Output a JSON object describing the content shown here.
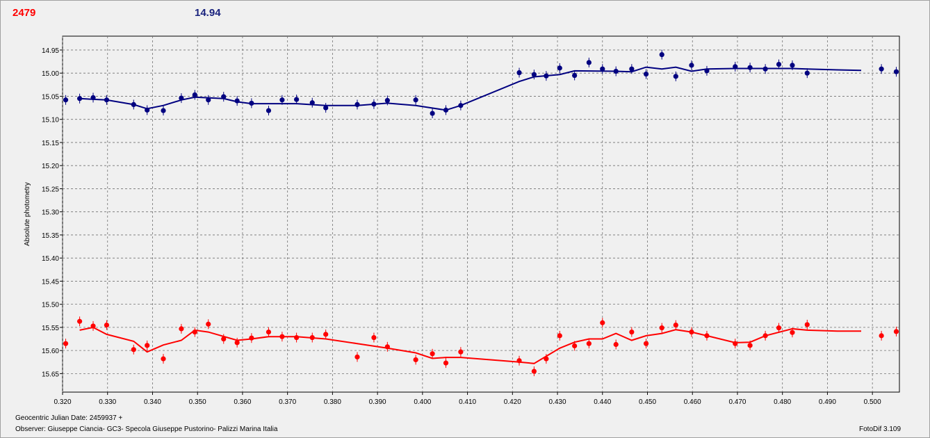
{
  "header": {
    "left_value": "2479",
    "right_value": "14.94"
  },
  "footer": {
    "julian_date": "Geocentric Julian Date: 2459937 +",
    "observer": "Observer: Giuseppe Ciancia- GC3- Specola Giuseppe Pustorino- Palizzi Marina Italia",
    "software": "FotoDif 3.109"
  },
  "colors": {
    "series_blue": "#000080",
    "series_red": "#ff0000",
    "plot_bg": "#f0f0f0",
    "grid": "#707070"
  },
  "chart_data": {
    "type": "scatter",
    "ylabel": "Absolute photometry",
    "xlabel": "",
    "xlim": [
      0.32,
      0.506
    ],
    "ylim": [
      14.92,
      15.69
    ],
    "y_inverted": true,
    "grid": true,
    "xticks": [
      "0.320",
      "0.330",
      "0.340",
      "0.350",
      "0.360",
      "0.370",
      "0.380",
      "0.390",
      "0.400",
      "0.410",
      "0.420",
      "0.430",
      "0.440",
      "0.450",
      "0.460",
      "0.470",
      "0.480",
      "0.490",
      "0.500"
    ],
    "yticks": [
      "14.95",
      "15.00",
      "15.05",
      "15.10",
      "15.15",
      "15.20",
      "15.25",
      "15.30",
      "15.35",
      "15.40",
      "15.45",
      "15.50",
      "15.55",
      "15.60",
      "15.65"
    ],
    "series": [
      {
        "color": "#000080",
        "points": [
          [
            0.3207,
            15.058
          ],
          [
            0.3238,
            15.055
          ],
          [
            0.3268,
            15.053
          ],
          [
            0.3298,
            15.058
          ],
          [
            0.3358,
            15.068
          ],
          [
            0.3388,
            15.08
          ],
          [
            0.3424,
            15.081
          ],
          [
            0.3464,
            15.054
          ],
          [
            0.3494,
            15.047
          ],
          [
            0.3524,
            15.058
          ],
          [
            0.3558,
            15.051
          ],
          [
            0.3588,
            15.06
          ],
          [
            0.362,
            15.065
          ],
          [
            0.3658,
            15.081
          ],
          [
            0.3688,
            15.058
          ],
          [
            0.372,
            15.057
          ],
          [
            0.3755,
            15.064
          ],
          [
            0.3785,
            15.075
          ],
          [
            0.3855,
            15.068
          ],
          [
            0.3892,
            15.067
          ],
          [
            0.3922,
            15.059
          ],
          [
            0.3985,
            15.058
          ],
          [
            0.4022,
            15.087
          ],
          [
            0.4052,
            15.08
          ],
          [
            0.4085,
            15.07
          ],
          [
            0.4215,
            14.999
          ],
          [
            0.4248,
            15.003
          ],
          [
            0.4275,
            15.006
          ],
          [
            0.4305,
            14.989
          ],
          [
            0.4338,
            15.005
          ],
          [
            0.437,
            14.977
          ],
          [
            0.44,
            14.991
          ],
          [
            0.443,
            14.996
          ],
          [
            0.4465,
            14.991
          ],
          [
            0.4497,
            15.002
          ],
          [
            0.4532,
            14.96
          ],
          [
            0.4563,
            15.007
          ],
          [
            0.4598,
            14.983
          ],
          [
            0.4632,
            14.995
          ],
          [
            0.4695,
            14.986
          ],
          [
            0.4728,
            14.988
          ],
          [
            0.4762,
            14.991
          ],
          [
            0.4792,
            14.981
          ],
          [
            0.4822,
            14.983
          ],
          [
            0.4855,
            15.0
          ],
          [
            0.502,
            14.991
          ],
          [
            0.5053,
            14.997
          ]
        ],
        "fit": [
          [
            0.3238,
            15.055
          ],
          [
            0.3298,
            15.058
          ],
          [
            0.3358,
            15.068
          ],
          [
            0.3388,
            15.077
          ],
          [
            0.3424,
            15.07
          ],
          [
            0.3464,
            15.058
          ],
          [
            0.3494,
            15.052
          ],
          [
            0.3558,
            15.055
          ],
          [
            0.3588,
            15.062
          ],
          [
            0.362,
            15.066
          ],
          [
            0.372,
            15.066
          ],
          [
            0.3785,
            15.07
          ],
          [
            0.3855,
            15.07
          ],
          [
            0.3922,
            15.065
          ],
          [
            0.3985,
            15.07
          ],
          [
            0.4052,
            15.08
          ],
          [
            0.4085,
            15.07
          ],
          [
            0.4215,
            15.018
          ],
          [
            0.4248,
            15.008
          ],
          [
            0.4305,
            15.003
          ],
          [
            0.4338,
            14.995
          ],
          [
            0.443,
            14.996
          ],
          [
            0.4465,
            14.997
          ],
          [
            0.4497,
            14.987
          ],
          [
            0.4532,
            14.991
          ],
          [
            0.4563,
            14.987
          ],
          [
            0.4598,
            14.996
          ],
          [
            0.4632,
            14.991
          ],
          [
            0.4695,
            14.99
          ],
          [
            0.4822,
            14.99
          ],
          [
            0.4855,
            14.991
          ],
          [
            0.4922,
            14.993
          ],
          [
            0.4975,
            14.994
          ]
        ]
      },
      {
        "color": "#ff0000",
        "points": [
          [
            0.3207,
            15.585
          ],
          [
            0.3238,
            15.537
          ],
          [
            0.3268,
            15.547
          ],
          [
            0.3298,
            15.545
          ],
          [
            0.3358,
            15.598
          ],
          [
            0.3388,
            15.589
          ],
          [
            0.3424,
            15.618
          ],
          [
            0.3464,
            15.553
          ],
          [
            0.3494,
            15.56
          ],
          [
            0.3524,
            15.543
          ],
          [
            0.3558,
            15.575
          ],
          [
            0.3588,
            15.583
          ],
          [
            0.362,
            15.573
          ],
          [
            0.3658,
            15.56
          ],
          [
            0.3688,
            15.57
          ],
          [
            0.372,
            15.572
          ],
          [
            0.3755,
            15.572
          ],
          [
            0.3785,
            15.565
          ],
          [
            0.3855,
            15.614
          ],
          [
            0.3892,
            15.572
          ],
          [
            0.3922,
            15.592
          ],
          [
            0.3985,
            15.62
          ],
          [
            0.4022,
            15.607
          ],
          [
            0.4052,
            15.627
          ],
          [
            0.4085,
            15.603
          ],
          [
            0.4215,
            15.622
          ],
          [
            0.4248,
            15.645
          ],
          [
            0.4275,
            15.618
          ],
          [
            0.4305,
            15.568
          ],
          [
            0.4338,
            15.59
          ],
          [
            0.437,
            15.585
          ],
          [
            0.44,
            15.54
          ],
          [
            0.443,
            15.587
          ],
          [
            0.4465,
            15.56
          ],
          [
            0.4497,
            15.585
          ],
          [
            0.4532,
            15.551
          ],
          [
            0.4563,
            15.545
          ],
          [
            0.4598,
            15.56
          ],
          [
            0.4632,
            15.568
          ],
          [
            0.4695,
            15.585
          ],
          [
            0.4728,
            15.589
          ],
          [
            0.4762,
            15.568
          ],
          [
            0.4792,
            15.551
          ],
          [
            0.4822,
            15.561
          ],
          [
            0.4855,
            15.544
          ],
          [
            0.502,
            15.568
          ],
          [
            0.5053,
            15.559
          ]
        ],
        "fit": [
          [
            0.3238,
            15.556
          ],
          [
            0.3268,
            15.55
          ],
          [
            0.3298,
            15.565
          ],
          [
            0.3358,
            15.58
          ],
          [
            0.3388,
            15.603
          ],
          [
            0.3424,
            15.588
          ],
          [
            0.3464,
            15.578
          ],
          [
            0.3494,
            15.556
          ],
          [
            0.3524,
            15.56
          ],
          [
            0.3588,
            15.578
          ],
          [
            0.362,
            15.575
          ],
          [
            0.3658,
            15.57
          ],
          [
            0.372,
            15.57
          ],
          [
            0.3785,
            15.575
          ],
          [
            0.3855,
            15.585
          ],
          [
            0.3922,
            15.595
          ],
          [
            0.3985,
            15.605
          ],
          [
            0.4022,
            15.617
          ],
          [
            0.4052,
            15.615
          ],
          [
            0.4085,
            15.615
          ],
          [
            0.4215,
            15.625
          ],
          [
            0.4248,
            15.628
          ],
          [
            0.4305,
            15.595
          ],
          [
            0.4338,
            15.582
          ],
          [
            0.437,
            15.575
          ],
          [
            0.44,
            15.575
          ],
          [
            0.443,
            15.563
          ],
          [
            0.4465,
            15.578
          ],
          [
            0.4497,
            15.568
          ],
          [
            0.4532,
            15.563
          ],
          [
            0.4563,
            15.555
          ],
          [
            0.4598,
            15.56
          ],
          [
            0.4632,
            15.568
          ],
          [
            0.4695,
            15.583
          ],
          [
            0.4728,
            15.582
          ],
          [
            0.4762,
            15.568
          ],
          [
            0.4822,
            15.553
          ],
          [
            0.4855,
            15.556
          ],
          [
            0.4922,
            15.558
          ],
          [
            0.4975,
            15.558
          ]
        ]
      }
    ]
  }
}
